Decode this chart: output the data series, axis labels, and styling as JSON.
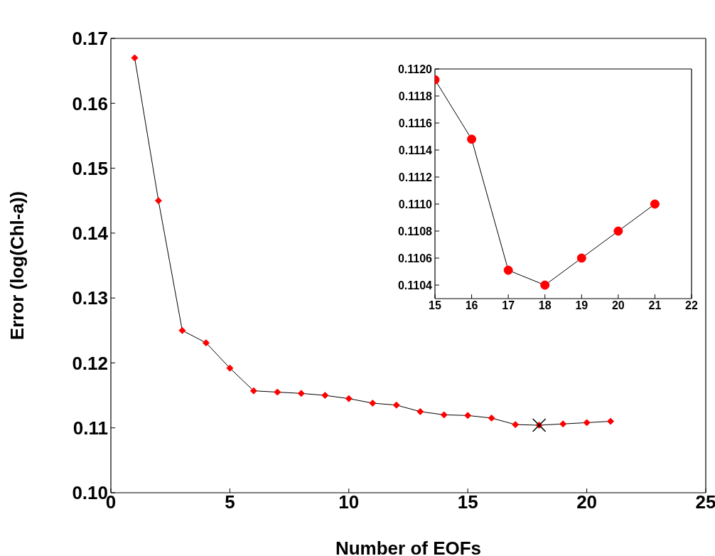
{
  "chart_data": [
    {
      "type": "line",
      "xlabel": "Number of EOFs",
      "ylabel": "Error (log(Chl-a))",
      "x": [
        1,
        2,
        3,
        4,
        5,
        6,
        7,
        8,
        9,
        10,
        11,
        12,
        13,
        14,
        15,
        16,
        17,
        18,
        19,
        20,
        21
      ],
      "xlim": [
        0,
        25
      ],
      "xticks": [
        0,
        5,
        10,
        15,
        20,
        25
      ],
      "ylim": [
        0.1,
        0.17
      ],
      "yticks": [
        {
          "value": 0.1,
          "label": "0.10"
        },
        {
          "value": 0.11,
          "label": "0.11"
        },
        {
          "value": 0.12,
          "label": "0.12"
        },
        {
          "value": 0.13,
          "label": "0.13"
        },
        {
          "value": 0.14,
          "label": "0.14"
        },
        {
          "value": 0.15,
          "label": "0.15"
        },
        {
          "value": 0.16,
          "label": "0.16"
        },
        {
          "value": 0.17,
          "label": "0.17"
        }
      ],
      "marker": "diamond",
      "series": [
        {
          "color": "#ff0000",
          "values": [
            0.167,
            0.145,
            0.125,
            0.1231,
            0.1192,
            0.1157,
            0.1155,
            0.1153,
            0.115,
            0.1145,
            0.1138,
            0.1135,
            0.1125,
            0.112,
            0.1119,
            0.1115,
            0.1105,
            0.1104,
            0.1106,
            0.1108,
            0.111
          ]
        },
        {
          "type": "scatter",
          "marker": "cross",
          "color": "#000000",
          "x": [
            18
          ],
          "values": [
            0.1104
          ]
        }
      ]
    },
    {
      "type": "line",
      "x": [
        15,
        16,
        17,
        18,
        19,
        20,
        21
      ],
      "xlim": [
        15,
        22
      ],
      "xticks": [
        15,
        16,
        17,
        18,
        19,
        20,
        21,
        22
      ],
      "ylim": [
        0.1103,
        0.112
      ],
      "yticks": [
        {
          "value": 0.1104,
          "label": "0.1104"
        },
        {
          "value": 0.1106,
          "label": "0.1106"
        },
        {
          "value": 0.1108,
          "label": "0.1108"
        },
        {
          "value": 0.111,
          "label": "0.1110"
        },
        {
          "value": 0.1112,
          "label": "0.1112"
        },
        {
          "value": 0.1114,
          "label": "0.1114"
        },
        {
          "value": 0.1116,
          "label": "0.1116"
        },
        {
          "value": 0.1118,
          "label": "0.1118"
        },
        {
          "value": 0.112,
          "label": "0.1120"
        }
      ],
      "marker": "circle",
      "series": [
        {
          "color": "#ff0000",
          "values": [
            0.11192,
            0.11148,
            0.11051,
            0.1104,
            0.1106,
            0.1108,
            0.111
          ]
        }
      ]
    }
  ]
}
